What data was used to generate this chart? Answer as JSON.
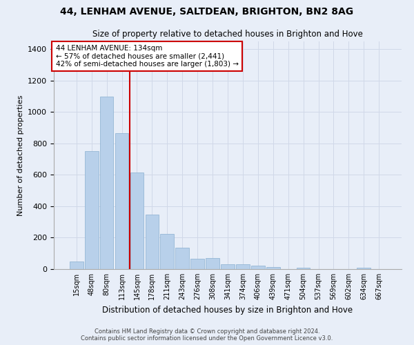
{
  "title_line1": "44, LENHAM AVENUE, SALTDEAN, BRIGHTON, BN2 8AG",
  "title_line2": "Size of property relative to detached houses in Brighton and Hove",
  "xlabel": "Distribution of detached houses by size in Brighton and Hove",
  "ylabel": "Number of detached properties",
  "footnote1": "Contains HM Land Registry data © Crown copyright and database right 2024.",
  "footnote2": "Contains public sector information licensed under the Open Government Licence v3.0.",
  "categories": [
    "15sqm",
    "48sqm",
    "80sqm",
    "113sqm",
    "145sqm",
    "178sqm",
    "211sqm",
    "243sqm",
    "276sqm",
    "308sqm",
    "341sqm",
    "374sqm",
    "406sqm",
    "439sqm",
    "471sqm",
    "504sqm",
    "537sqm",
    "569sqm",
    "602sqm",
    "634sqm",
    "667sqm"
  ],
  "values": [
    50,
    750,
    1100,
    865,
    615,
    345,
    225,
    135,
    65,
    70,
    30,
    30,
    20,
    15,
    0,
    10,
    0,
    0,
    0,
    10,
    0
  ],
  "bar_color": "#b8d0ea",
  "bar_edge_color": "#8aafd0",
  "grid_color": "#d0d8e8",
  "bg_color": "#e8eef8",
  "vline_x_index": 4,
  "vline_color": "#cc0000",
  "annotation_text": "44 LENHAM AVENUE: 134sqm\n← 57% of detached houses are smaller (2,441)\n42% of semi-detached houses are larger (1,803) →",
  "annotation_box_color": "#cc0000",
  "ylim": [
    0,
    1450
  ],
  "yticks": [
    0,
    200,
    400,
    600,
    800,
    1000,
    1200,
    1400
  ]
}
